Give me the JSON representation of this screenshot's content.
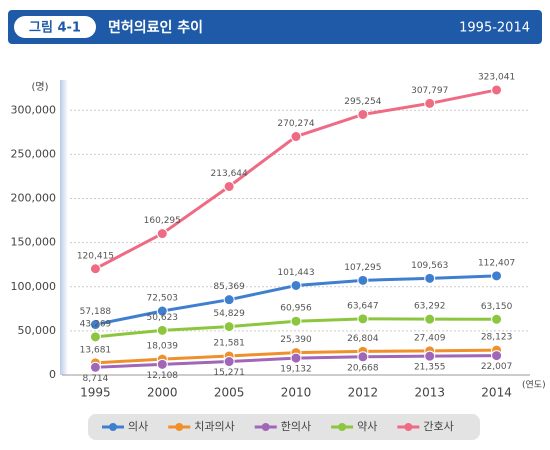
{
  "chart_data": {
    "type": "line",
    "figure_label": "그림 4-1",
    "title": "면허의료인 추이",
    "subtitle": "1995-2014",
    "y_unit": "(명)",
    "x_unit": "(연도)",
    "categories": [
      "1995",
      "2000",
      "2005",
      "2010",
      "2012",
      "2013",
      "2014"
    ],
    "ylim": [
      0,
      340000
    ],
    "yticks": [
      0,
      {
        "value": 50000,
        "label": "50,000"
      },
      {
        "value": 100000,
        "label": "100,000"
      },
      {
        "value": 150000,
        "label": "150,000"
      },
      {
        "value": 200000,
        "label": "200,000"
      },
      {
        "value": 250000,
        "label": "250,000"
      },
      {
        "value": 300000,
        "label": "300,000"
      }
    ],
    "grid": true,
    "series": [
      {
        "name": "의사",
        "color": "#3f7fd0",
        "values": [
          57188,
          72503,
          85369,
          101443,
          107295,
          109563,
          112407
        ],
        "value_labels": [
          "57,188",
          "72,503",
          "85,369",
          "101,443",
          "107,295",
          "109,563",
          "112,407"
        ]
      },
      {
        "name": "치과의사",
        "color": "#f0902a",
        "values": [
          13681,
          18039,
          21581,
          25390,
          26804,
          27409,
          28123
        ],
        "value_labels": [
          "13,681",
          "18,039",
          "21,581",
          "25,390",
          "26,804",
          "27,409",
          "28,123"
        ]
      },
      {
        "name": "한의사",
        "color": "#a066b8",
        "values": [
          8714,
          12108,
          15271,
          19132,
          20668,
          21355,
          22007
        ],
        "value_labels": [
          "8,714",
          "12,108",
          "15,271",
          "19,132",
          "20,668",
          "21,355",
          "22,007"
        ]
      },
      {
        "name": "약사",
        "color": "#8cc63f",
        "values": [
          43269,
          50623,
          54829,
          60956,
          63647,
          63292,
          63150
        ],
        "value_labels": [
          "43,269",
          "50,623",
          "54,829",
          "60,956",
          "63,647",
          "63,292",
          "63,150"
        ]
      },
      {
        "name": "간호사",
        "color": "#ef6b84",
        "values": [
          120415,
          160295,
          213644,
          270274,
          295254,
          307797,
          323041
        ],
        "value_labels": [
          "120,415",
          "160,295",
          "213,644",
          "270,274",
          "295,254",
          "307,797",
          "323,041"
        ]
      }
    ],
    "legend": "bottom"
  }
}
